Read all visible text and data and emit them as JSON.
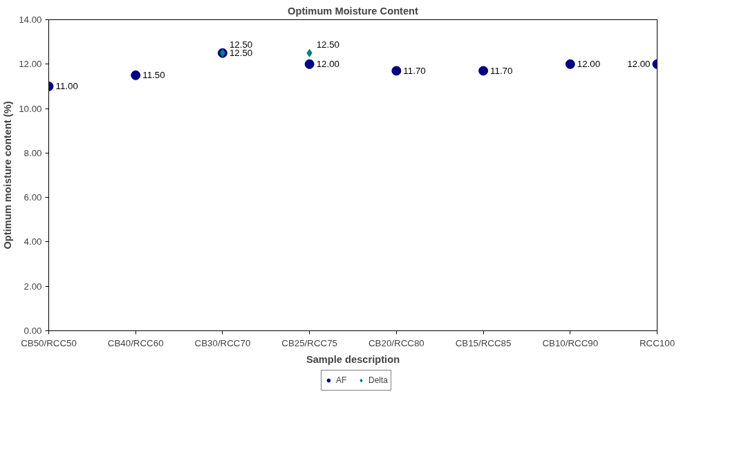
{
  "chart_data": {
    "type": "scatter",
    "title": "Optimum Moisture Content",
    "xlabel": "Sample description",
    "ylabel": "Optimum moisture content (%)",
    "categories": [
      "CB50/RCC50",
      "CB40/RCC60",
      "CB30/RCC70",
      "CB25/RCC75",
      "CB20/RCC80",
      "CB15/RCC85",
      "CB10/RCC90",
      "RCC100"
    ],
    "series": [
      {
        "name": "AF",
        "color": "#000080",
        "marker": "circle",
        "values": [
          11.0,
          11.5,
          12.5,
          12.0,
          11.7,
          11.7,
          12.0,
          12.0
        ],
        "value_labels": [
          "11.00",
          "11.50",
          "12.50",
          "12.00",
          "11.70",
          "11.70",
          "12.00",
          "12.00"
        ]
      },
      {
        "name": "Delta",
        "color": "#008080",
        "marker": "diamond",
        "values": [
          null,
          null,
          12.5,
          12.5,
          null,
          null,
          null,
          null
        ],
        "value_labels": [
          null,
          null,
          "12.50",
          "12.50",
          null,
          null,
          null,
          null
        ]
      }
    ],
    "ylim": [
      0,
      14
    ],
    "yticks": [
      {
        "value": 0,
        "label": "0.00"
      },
      {
        "value": 2,
        "label": "2.00"
      },
      {
        "value": 4,
        "label": "4.00"
      },
      {
        "value": 6,
        "label": "6.00"
      },
      {
        "value": 8,
        "label": "8.00"
      },
      {
        "value": 10,
        "label": "10.00"
      },
      {
        "value": 12,
        "label": "12.00"
      },
      {
        "value": 14,
        "label": "14.00"
      }
    ],
    "grid": false,
    "legend": "bottom"
  }
}
